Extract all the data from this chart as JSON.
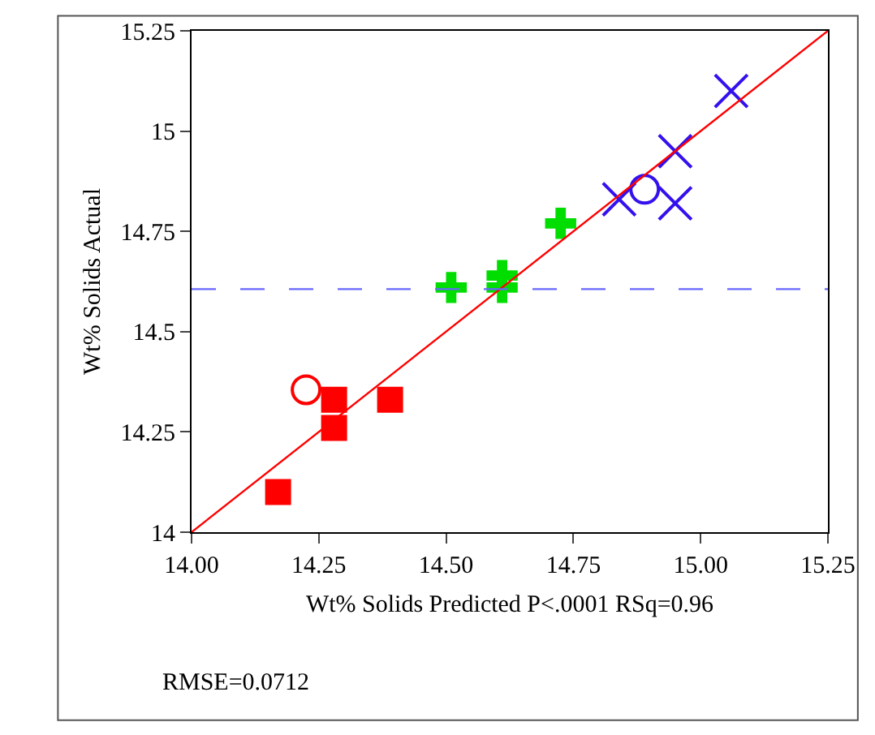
{
  "chart_data": {
    "type": "scatter",
    "xlabel": "Wt% Solids Predicted P<.0001 RSq=0.96",
    "ylabel": "Wt% Solids Actual",
    "annotations": [
      "RMSE=0.0712"
    ],
    "series": [
      {
        "color": "#ff0000",
        "marker": "square",
        "x": [
          14.17,
          14.28,
          14.28,
          14.39
        ],
        "values": [
          14.1,
          14.33,
          14.26,
          14.33
        ]
      },
      {
        "color": "#ff0000",
        "marker": "circle",
        "x": [
          14.225
        ],
        "values": [
          14.355
        ]
      },
      {
        "color": "#00dd00",
        "marker": "cross",
        "x": [
          14.51,
          14.61,
          14.61,
          14.725
        ],
        "values": [
          14.61,
          14.61,
          14.64,
          14.77
        ]
      },
      {
        "color": "#3311ee",
        "marker": "x",
        "x": [
          14.84,
          14.95,
          14.95,
          15.06
        ],
        "values": [
          14.83,
          14.95,
          14.82,
          15.1
        ]
      },
      {
        "color": "#3311ee",
        "marker": "circle",
        "x": [
          14.89
        ],
        "values": [
          14.855
        ]
      },
      {
        "type": "line",
        "color": "#ff0000",
        "marker": "none",
        "x": [
          14.0,
          15.25
        ],
        "values": [
          14.0,
          15.25
        ]
      }
    ],
    "ref_lines": [
      {
        "axis": "y",
        "value": 14.606,
        "color": "#6666ff",
        "line_style": "dashed"
      }
    ],
    "xlim": [
      14.0,
      15.25
    ],
    "ylim": [
      14.0,
      15.25
    ],
    "xticks": [
      {
        "value": 14.0,
        "label": "14.00"
      },
      {
        "value": 14.25,
        "label": "14.25"
      },
      {
        "value": 14.5,
        "label": "14.50"
      },
      {
        "value": 14.75,
        "label": "14.75"
      },
      {
        "value": 15.0,
        "label": "15.00"
      },
      {
        "value": 15.25,
        "label": "15.25"
      }
    ],
    "yticks": [
      14,
      14.25,
      14.5,
      14.75,
      15,
      15.25
    ]
  }
}
